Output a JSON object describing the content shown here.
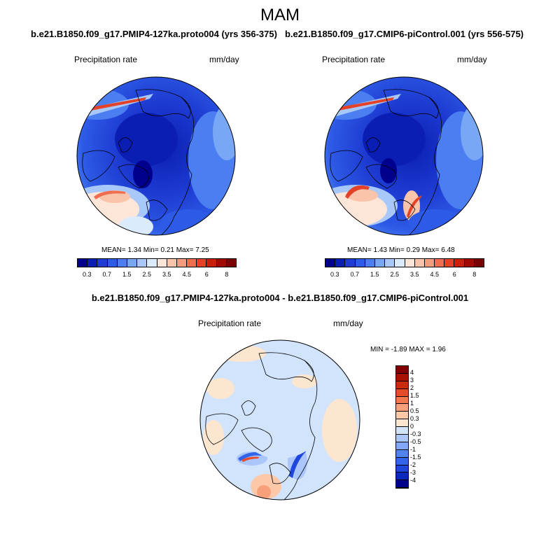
{
  "figure": {
    "title": "MAM"
  },
  "panels": [
    {
      "case_title": "b.e21.B1850.f09_g17.PMIP4-127ka.proto004 (yrs 356-375)",
      "variable": "Precipitation rate",
      "units": "mm/day",
      "stats_text": "MEAN=   1.34  Min=   0.21  Max=   7.25",
      "stats": {
        "mean": 1.34,
        "min": 0.21,
        "max": 7.25
      }
    },
    {
      "case_title": "b.e21.B1850.f09_g17.CMIP6-piControl.001 (yrs 556-575)",
      "variable": "Precipitation rate",
      "units": "mm/day",
      "stats_text": "MEAN=   1.43  Min=   0.29  Max=   6.48",
      "stats": {
        "mean": 1.43,
        "min": 0.29,
        "max": 6.48
      }
    }
  ],
  "diff_panel": {
    "case_title": "b.e21.B1850.f09_g17.PMIP4-127ka.proto004 - b.e21.B1850.f09_g17.CMIP6-piControl.001",
    "variable": "Precipitation rate",
    "units": "mm/day",
    "stats_text": "MIN =  -1.89 MAX =   1.96",
    "stats": {
      "min": -1.89,
      "max": 1.96
    }
  },
  "colorbar_main": {
    "labels": [
      "0.3",
      "0.7",
      "1.5",
      "2.5",
      "3.5",
      "4.5",
      "6",
      "8"
    ],
    "colors": [
      "#00008c",
      "#0a1eb4",
      "#1e3cd2",
      "#2d5ae6",
      "#4b7ef0",
      "#78a8f5",
      "#a8c8fa",
      "#dcebfc",
      "#fde6d8",
      "#f9c4aa",
      "#f59c7c",
      "#ef6e50",
      "#e34228",
      "#c81e0a",
      "#a00a00",
      "#780000"
    ]
  },
  "colorbar_diff": {
    "labels": [
      "4",
      "3",
      "2",
      "1.5",
      "1",
      "0.5",
      "0.3",
      "0",
      "-0.3",
      "-0.5",
      "-1",
      "-1.5",
      "-2",
      "-3",
      "-4"
    ],
    "colors": [
      "#00008c",
      "#0a28be",
      "#1e46dc",
      "#3264eb",
      "#5082f0",
      "#82a8f5",
      "#aac6fa",
      "#d2e4fc",
      "#fde6d0",
      "#fcc8a8",
      "#f8a07c",
      "#f27850",
      "#e64c2a",
      "#cc2a0c",
      "#a81000",
      "#820000"
    ]
  },
  "icons": [
    "polar-map-icon",
    "coastline-icon"
  ]
}
